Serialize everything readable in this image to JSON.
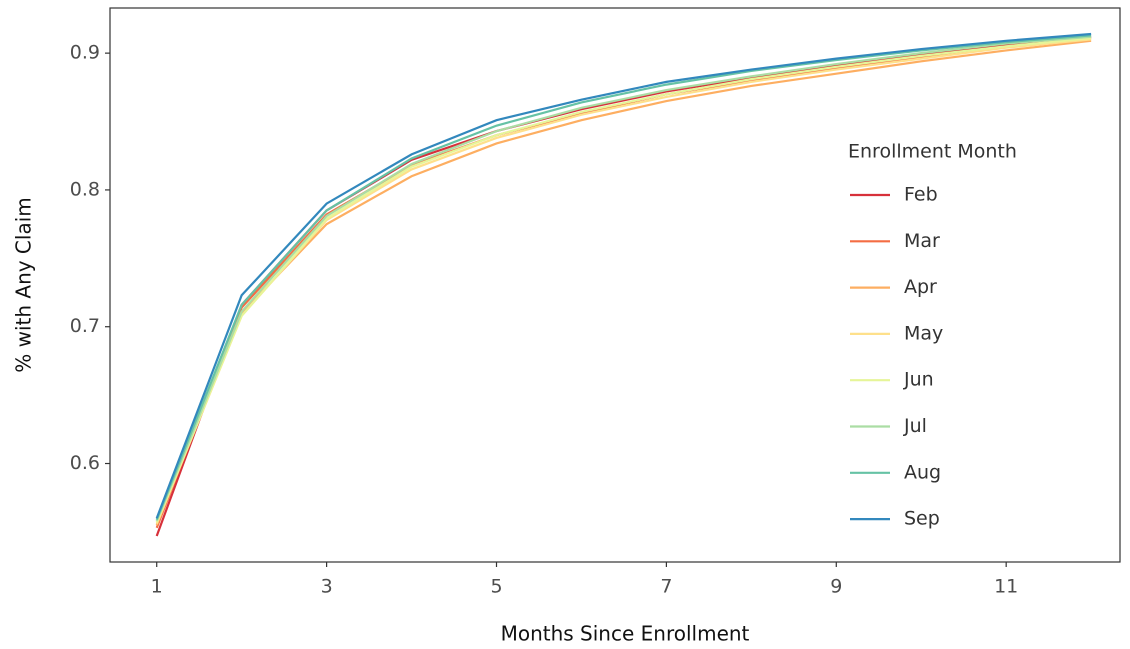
{
  "chart_data": {
    "type": "line",
    "x_label": "Months Since Enrollment",
    "y_label": "% with Any Claim",
    "legend_title": "Enrollment Month",
    "legend_position": "right",
    "x": [
      1,
      2,
      3,
      4,
      5,
      6,
      7,
      8,
      9,
      10,
      11,
      12
    ],
    "xlim": [
      0.45,
      12.34
    ],
    "xticks": [
      1,
      3,
      5,
      7,
      9,
      11
    ],
    "ylim": [
      0.528,
      0.933
    ],
    "yticks": [
      0.6,
      0.7,
      0.8,
      0.9
    ],
    "series": [
      {
        "name": "Feb",
        "color": "#d7303a",
        "values": [
          0.547,
          0.716,
          0.785,
          0.822,
          0.843,
          0.859,
          0.872,
          0.882,
          0.891,
          0.899,
          0.906,
          0.912
        ]
      },
      {
        "name": "Mar",
        "color": "#f46d43",
        "values": [
          0.553,
          0.714,
          0.782,
          0.818,
          0.84,
          0.856,
          0.87,
          0.88,
          0.889,
          0.897,
          0.905,
          0.911
        ]
      },
      {
        "name": "Apr",
        "color": "#fdae61",
        "values": [
          0.555,
          0.71,
          0.775,
          0.81,
          0.834,
          0.851,
          0.865,
          0.876,
          0.885,
          0.894,
          0.902,
          0.909
        ]
      },
      {
        "name": "May",
        "color": "#fee08b",
        "values": [
          0.556,
          0.708,
          0.778,
          0.815,
          0.838,
          0.855,
          0.868,
          0.879,
          0.888,
          0.896,
          0.904,
          0.91
        ]
      },
      {
        "name": "Jun",
        "color": "#e6f598",
        "values": [
          0.557,
          0.708,
          0.779,
          0.817,
          0.84,
          0.857,
          0.87,
          0.881,
          0.89,
          0.898,
          0.905,
          0.911
        ]
      },
      {
        "name": "Jul",
        "color": "#abdda4",
        "values": [
          0.558,
          0.711,
          0.781,
          0.819,
          0.843,
          0.86,
          0.873,
          0.883,
          0.892,
          0.9,
          0.907,
          0.912
        ]
      },
      {
        "name": "Aug",
        "color": "#66c2a5",
        "values": [
          0.559,
          0.716,
          0.785,
          0.823,
          0.847,
          0.864,
          0.877,
          0.887,
          0.895,
          0.902,
          0.908,
          0.913
        ]
      },
      {
        "name": "Sep",
        "color": "#3288bd",
        "values": [
          0.56,
          0.723,
          0.79,
          0.826,
          0.851,
          0.866,
          0.879,
          0.888,
          0.896,
          0.903,
          0.909,
          0.914
        ]
      }
    ]
  }
}
